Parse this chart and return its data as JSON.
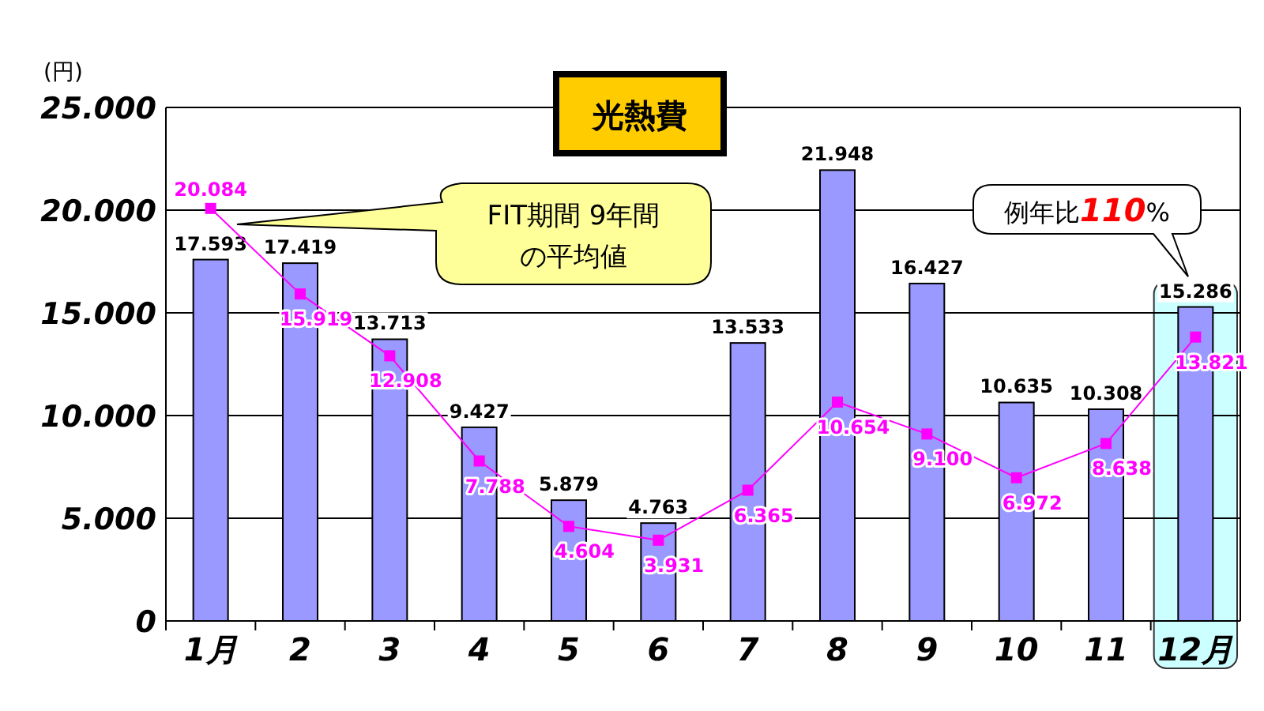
{
  "chart_data": {
    "type": "bar",
    "title": "光熱費",
    "ylabel": "(円)",
    "categories": [
      "1月",
      "2",
      "3",
      "4",
      "5",
      "6",
      "7",
      "8",
      "9",
      "10",
      "11",
      "12月"
    ],
    "series": [
      {
        "color": "#9999ff",
        "values": [
          17593,
          17419,
          13713,
          9427,
          5879,
          4763,
          13533,
          21948,
          16427,
          10635,
          10308,
          15286
        ],
        "value_labels": [
          "17.593",
          "17.419",
          "13.713",
          "9.427",
          "5.879",
          "4.763",
          "13.533",
          "21.948",
          "16.427",
          "10.635",
          "10.308",
          "15.286"
        ]
      },
      {
        "type": "line",
        "color": "#ff00ff",
        "marker": "square",
        "values": [
          20084,
          15919,
          12908,
          7788,
          4604,
          3931,
          6365,
          10654,
          9100,
          6972,
          8638,
          13821
        ],
        "value_labels": [
          "20.084",
          "15.919",
          "12.908",
          "7.788",
          "4.604",
          "3.931",
          "6.365",
          "10.654",
          "9.100",
          "6.972",
          "8.638",
          "13.821"
        ]
      }
    ],
    "ylim": [
      0,
      25000
    ],
    "yticks": [
      0,
      {
        "value": 5000,
        "label": "5.000"
      },
      {
        "value": 10000,
        "label": "10.000"
      },
      {
        "value": 15000,
        "label": "15.000"
      },
      {
        "value": 20000,
        "label": "20.000"
      },
      {
        "value": 25000,
        "label": "25.000"
      }
    ],
    "grid": "y",
    "legend": false,
    "bands": [
      {
        "axis": "x",
        "from": "12月",
        "to": "12月",
        "color": "#ccffff"
      }
    ],
    "annotations": [
      "FIT期間 9年間",
      "の平均値",
      "例年比110%"
    ]
  }
}
